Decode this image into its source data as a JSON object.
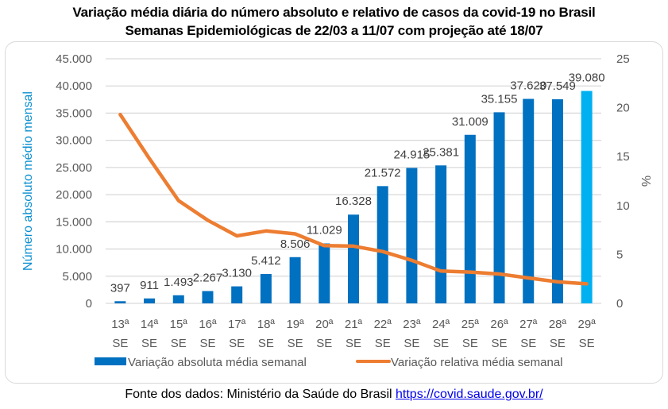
{
  "chart_data": {
    "type": "bar+line",
    "title": "Variação média diária do número absoluto e relativo de casos da covid-19 no Brasil",
    "subtitle": "Semanas Epidemiológicas de 22/03 a 11/07 com projeção até 18/07",
    "categories": [
      [
        "13ª",
        "SE"
      ],
      [
        "14ª",
        "SE"
      ],
      [
        "15ª",
        "SE"
      ],
      [
        "16ª",
        "SE"
      ],
      [
        "17ª",
        "SE"
      ],
      [
        "18ª",
        "SE"
      ],
      [
        "19ª",
        "SE"
      ],
      [
        "20ª",
        "SE"
      ],
      [
        "21ª",
        "SE"
      ],
      [
        "22ª",
        "SE"
      ],
      [
        "23ª",
        "SE"
      ],
      [
        "24ª",
        "SE"
      ],
      [
        "25ª",
        "SE"
      ],
      [
        "26ª",
        "SE"
      ],
      [
        "27ª",
        "SE"
      ],
      [
        "28ª",
        "SE"
      ],
      [
        "29ª",
        "SE"
      ]
    ],
    "series": [
      {
        "name": "Variação absoluta média semanal",
        "type": "bar",
        "axis": "left",
        "color": "#0070c0",
        "projection_color": "#00b0f0",
        "projection_index": 16,
        "values": [
          397,
          911,
          1493,
          2267,
          3130,
          5412,
          8506,
          11029,
          16328,
          21572,
          24915,
          25381,
          31009,
          35155,
          37620,
          37549,
          39080
        ],
        "labels": [
          "397",
          "911",
          "1.493",
          "2.267",
          "3.130",
          "5.412",
          "8.506",
          "11.029",
          "16.328",
          "21.572",
          "24.915",
          "25.381",
          "31.009",
          "35.155",
          "37.620",
          "37.549",
          "39.080"
        ]
      },
      {
        "name": "Variação relativa média semanal",
        "type": "line",
        "axis": "right",
        "color": "#ed7d31",
        "values": [
          19.3,
          14.8,
          10.5,
          8.5,
          6.9,
          7.4,
          7.1,
          5.9,
          5.85,
          5.3,
          4.4,
          3.3,
          3.2,
          3.0,
          2.6,
          2.2,
          2.0
        ]
      }
    ],
    "y_left": {
      "label": "Número absoluto médio mensal",
      "range": [
        0,
        45000
      ],
      "ticks": [
        0,
        5000,
        10000,
        15000,
        20000,
        25000,
        30000,
        35000,
        40000,
        45000
      ],
      "tick_labels": [
        "0",
        "5.000",
        "10.000",
        "15.000",
        "20.000",
        "25.000",
        "30.000",
        "35.000",
        "40.000",
        "45.000"
      ]
    },
    "y_right": {
      "label": "%",
      "range": [
        0,
        25
      ],
      "ticks": [
        0,
        5,
        10,
        15,
        20,
        25
      ],
      "tick_labels": [
        "0",
        "5",
        "10",
        "15",
        "20",
        "25"
      ]
    },
    "grid": true,
    "legend_position": "bottom"
  },
  "source": {
    "prefix": "Fonte dos dados: Ministério da Saúde do Brasil ",
    "link_text": "https://covid.saude.gov.br/"
  }
}
